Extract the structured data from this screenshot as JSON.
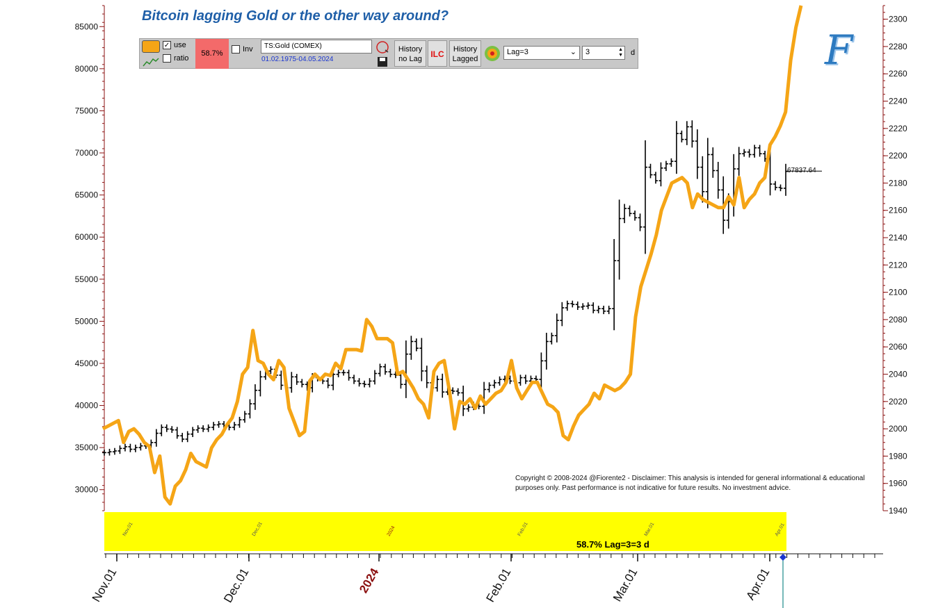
{
  "title": "Bitcoin lagging Gold or the other way around?",
  "toolbar": {
    "use_label": "use",
    "ratio_label": "ratio",
    "correlation": "58.7%",
    "inv_label": "Inv",
    "symbol": "TS:Gold (COMEX)",
    "date_range": "01.02.1975-04.05.2024",
    "history_no_lag": [
      "History",
      "no Lag"
    ],
    "ilc_label": "ILC",
    "history_lagged": [
      "History",
      "Lagged"
    ],
    "lag_select": "Lag=3",
    "lag_value": "3",
    "unit": "d"
  },
  "band_label": "58.7% Lag=3=3 d",
  "band_ticks": [
    "Nov.01",
    "Dec.01",
    "2024",
    "Feb.01",
    "Mar.01",
    "Apr.01"
  ],
  "last_price_label": "67837.64",
  "copyright": "Copyright © 2008-2024 @Fiorente2 -  Disclaimer: This analysis is intended for general informational & educational purposes only. Past performance is not indicative for future results. No investment advice.",
  "logo": "F",
  "colors": {
    "bitcoin_bars": "#000000",
    "gold_line": "#f5a516",
    "band": "#ffff00",
    "title": "#1f5fa8",
    "year_label": "#8b1010",
    "correlation_bg": "#f36a6a"
  },
  "chart_data": {
    "type": "line",
    "x_axis": {
      "labels": [
        "Nov.01",
        "Dec.01",
        "2024",
        "Feb.01",
        "Mar.01",
        "Apr.01"
      ],
      "highlight": "2024"
    },
    "left_axis": {
      "ticks": [
        30000,
        35000,
        40000,
        45000,
        50000,
        55000,
        60000,
        65000,
        70000,
        75000,
        80000,
        85000
      ],
      "range": [
        27500,
        87500
      ]
    },
    "right_axis": {
      "ticks": [
        1940,
        1960,
        1980,
        2000,
        2020,
        2040,
        2060,
        2080,
        2100,
        2120,
        2140,
        2160,
        2180,
        2200,
        2220,
        2240,
        2260,
        2280,
        2300
      ],
      "range": [
        1940,
        2310
      ]
    },
    "bitcoin_ohlc_values": [
      34400,
      34500,
      34600,
      34900,
      35100,
      34800,
      35000,
      35200,
      35300,
      35600,
      36700,
      37400,
      37200,
      37100,
      36400,
      36000,
      36600,
      37100,
      37300,
      37200,
      37400,
      37700,
      37800,
      37600,
      37400,
      37700,
      38300,
      39000,
      40200,
      41800,
      43400,
      44100,
      44300,
      43600,
      42400,
      42100,
      43400,
      42800,
      42500,
      42100,
      43300,
      43200,
      42900,
      42400,
      43700,
      43900,
      43900,
      43300,
      42900,
      42600,
      42500,
      42900,
      43800,
      44600,
      44000,
      43700,
      43600,
      42500,
      46100,
      47600,
      46800,
      44100,
      42700,
      42100,
      43100,
      41600,
      41800,
      41700,
      41500,
      39600,
      39800,
      40100,
      39900,
      41900,
      42400,
      42700,
      43100,
      43200,
      42900,
      42700,
      43300,
      42900,
      43200,
      43100,
      45300,
      47600,
      48300,
      50100,
      51600,
      52100,
      52000,
      51700,
      51800,
      51900,
      51300,
      51500,
      51200,
      51500,
      57200,
      62200,
      63400,
      62800,
      62300,
      61200,
      68300,
      67400,
      66700,
      68200,
      68700,
      69000,
      72300,
      71600,
      73100,
      71400,
      68300,
      65400,
      69800,
      67900,
      65600,
      62000,
      64200,
      68100,
      69900,
      70100,
      69800,
      70600,
      69900,
      69300,
      66300,
      65900,
      65800,
      67800
    ],
    "gold_lagged_values": [
      2000,
      2002,
      2004,
      2006,
      1990,
      1998,
      2000,
      1996,
      1990,
      1987,
      1968,
      1980,
      1950,
      1945,
      1958,
      1962,
      1970,
      1982,
      1976,
      1974,
      1972,
      1986,
      1992,
      1996,
      2003,
      2008,
      2020,
      2040,
      2045,
      2072,
      2050,
      2048,
      2040,
      2036,
      2050,
      2045,
      2015,
      2005,
      1995,
      1998,
      2035,
      2040,
      2036,
      2040,
      2039,
      2048,
      2044,
      2058,
      2058,
      2058,
      2057,
      2080,
      2075,
      2066,
      2066,
      2066,
      2063,
      2040,
      2042,
      2036,
      2030,
      2022,
      2018,
      2008,
      2042,
      2048,
      2050,
      2028,
      2000,
      2020,
      2018,
      2022,
      2015,
      2024,
      2018,
      2022,
      2026,
      2028,
      2034,
      2050,
      2030,
      2022,
      2028,
      2034,
      2034,
      2026,
      2018,
      2016,
      2012,
      1995,
      1992,
      2002,
      2010,
      2014,
      2018,
      2026,
      2022,
      2032,
      2030,
      2028,
      2030,
      2034,
      2040,
      2082,
      2104,
      2116,
      2128,
      2142,
      2160,
      2170,
      2180,
      2182,
      2184,
      2180,
      2162,
      2172,
      2168,
      2166,
      2164,
      2162,
      2162,
      2170,
      2164,
      2184,
      2162,
      2168,
      2172,
      2180,
      2184,
      2208,
      2214,
      2222,
      2232,
      2270,
      2294,
      2310
    ],
    "last_value": 67837.64
  }
}
